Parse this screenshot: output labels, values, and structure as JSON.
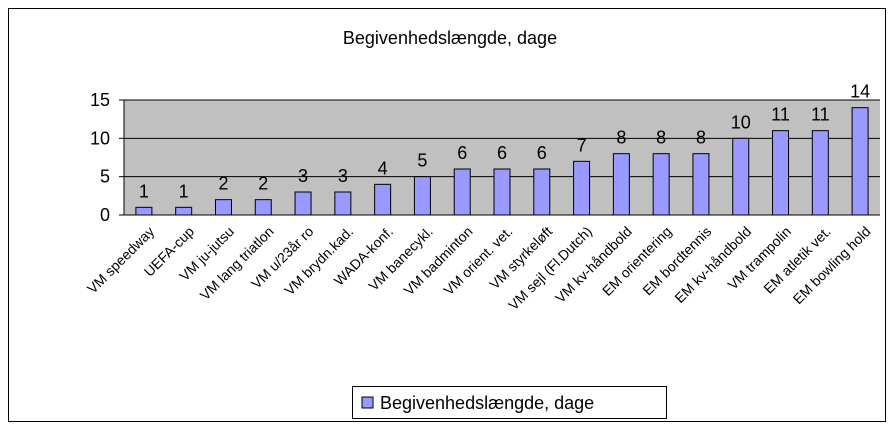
{
  "chart_data": {
    "type": "bar",
    "title": "Begivenhedslængde, dage",
    "categories": [
      "VM speedway",
      "UEFA-cup",
      "VM ju-jutsu",
      "VM lang triatlon",
      "VM u/23år ro",
      "VM brydn.kad.",
      "WADA-konf.",
      "VM banecykl.",
      "VM badminton",
      "VM orient. vet.",
      "VM styrkeløft",
      "VM sejl (Fl.Dutch)",
      "VM kv-håndbold",
      "EM orientering",
      "EM bordtennis",
      "EM kv-håndbold",
      "VM trampolin",
      "EM atletik vet.",
      "EM bowling hold"
    ],
    "series": [
      {
        "name": "Begivenhedslængde, dage",
        "color": "#9999ff",
        "values": [
          1,
          1,
          2,
          2,
          3,
          3,
          4,
          5,
          6,
          6,
          6,
          7,
          8,
          8,
          8,
          10,
          11,
          11,
          14
        ]
      }
    ],
    "ylim": [
      0,
      15
    ],
    "yticks": [
      0,
      5,
      10,
      15
    ],
    "grid": true,
    "legend": "bottom"
  }
}
